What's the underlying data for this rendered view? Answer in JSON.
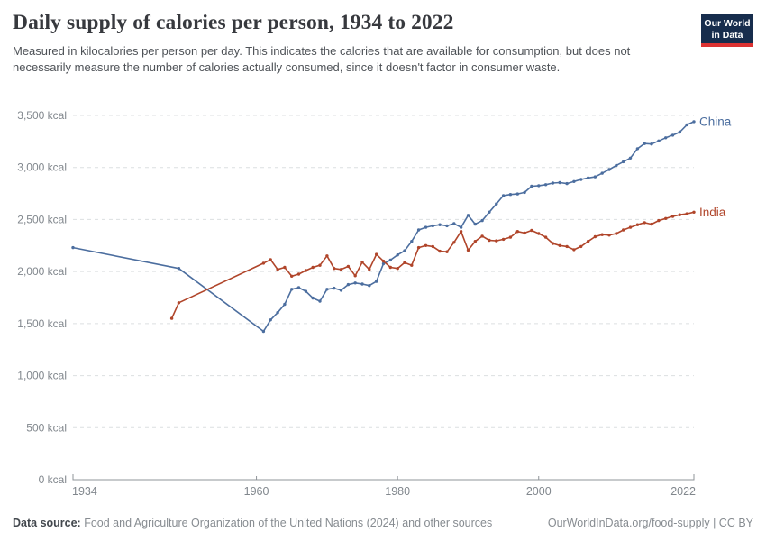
{
  "header": {
    "subtitle": "Measured in kilocalories per person per day. This indicates the calories that are available for consumption, but does not necessarily measure the number of calories actually consumed, since it doesn't factor in consumer waste.",
    "logo": {
      "line1": "Our World",
      "line2": "in Data"
    }
  },
  "footer": {
    "datasource_label": "Data source:",
    "datasource_text": " Food and Agriculture Organization of the United Nations (2024) and other sources",
    "link_text": "OurWorldInData.org/food-supply | CC BY"
  },
  "colors": {
    "china": "#4c6e9f",
    "india": "#b0452a",
    "grid": "#dcdfe1",
    "axis": "#8f9499",
    "tick_text": "#81878d",
    "logo_bg": "#172d4d",
    "logo_bar": "#dc3232"
  },
  "chart_data": {
    "type": "line",
    "title": "Daily supply of calories per person, 1934 to 2022",
    "xlabel": "",
    "ylabel": "kilocalories per person per day",
    "xlim": [
      1934,
      2022
    ],
    "ylim": [
      0,
      3500
    ],
    "x_ticks": [
      1934,
      1960,
      1980,
      2000,
      2022
    ],
    "y_ticks": [
      0,
      500,
      1000,
      1500,
      2000,
      2500,
      3000,
      3500
    ],
    "y_tick_suffix": " kcal",
    "grid": "horizontal-dashed",
    "legend_position": "line-end-labels",
    "series": [
      {
        "name": "China",
        "color": "#4c6e9f",
        "points": [
          [
            1934,
            2230
          ],
          [
            1949,
            2030
          ],
          [
            1961,
            1425
          ],
          [
            1962,
            1535
          ],
          [
            1963,
            1605
          ],
          [
            1964,
            1685
          ],
          [
            1965,
            1830
          ],
          [
            1966,
            1845
          ],
          [
            1967,
            1810
          ],
          [
            1968,
            1745
          ],
          [
            1969,
            1715
          ],
          [
            1970,
            1830
          ],
          [
            1971,
            1840
          ],
          [
            1972,
            1820
          ],
          [
            1973,
            1875
          ],
          [
            1974,
            1890
          ],
          [
            1975,
            1880
          ],
          [
            1976,
            1865
          ],
          [
            1977,
            1905
          ],
          [
            1978,
            2075
          ],
          [
            1979,
            2110
          ],
          [
            1980,
            2160
          ],
          [
            1981,
            2200
          ],
          [
            1982,
            2290
          ],
          [
            1983,
            2400
          ],
          [
            1984,
            2425
          ],
          [
            1985,
            2440
          ],
          [
            1986,
            2450
          ],
          [
            1987,
            2440
          ],
          [
            1988,
            2460
          ],
          [
            1989,
            2425
          ],
          [
            1990,
            2540
          ],
          [
            1991,
            2455
          ],
          [
            1992,
            2490
          ],
          [
            1993,
            2570
          ],
          [
            1994,
            2650
          ],
          [
            1995,
            2730
          ],
          [
            1996,
            2740
          ],
          [
            1997,
            2745
          ],
          [
            1998,
            2760
          ],
          [
            1999,
            2820
          ],
          [
            2000,
            2825
          ],
          [
            2001,
            2835
          ],
          [
            2002,
            2850
          ],
          [
            2003,
            2855
          ],
          [
            2004,
            2845
          ],
          [
            2005,
            2865
          ],
          [
            2006,
            2885
          ],
          [
            2007,
            2900
          ],
          [
            2008,
            2910
          ],
          [
            2009,
            2945
          ],
          [
            2010,
            2980
          ],
          [
            2011,
            3020
          ],
          [
            2012,
            3055
          ],
          [
            2013,
            3090
          ],
          [
            2014,
            3180
          ],
          [
            2015,
            3230
          ],
          [
            2016,
            3225
          ],
          [
            2017,
            3255
          ],
          [
            2018,
            3285
          ],
          [
            2019,
            3310
          ],
          [
            2020,
            3340
          ],
          [
            2021,
            3410
          ],
          [
            2022,
            3440
          ]
        ]
      },
      {
        "name": "India",
        "color": "#b0452a",
        "points": [
          [
            1948,
            1550
          ],
          [
            1949,
            1700
          ],
          [
            1961,
            2080
          ],
          [
            1962,
            2115
          ],
          [
            1963,
            2020
          ],
          [
            1964,
            2040
          ],
          [
            1965,
            1955
          ],
          [
            1966,
            1975
          ],
          [
            1967,
            2010
          ],
          [
            1968,
            2040
          ],
          [
            1969,
            2060
          ],
          [
            1970,
            2150
          ],
          [
            1971,
            2030
          ],
          [
            1972,
            2020
          ],
          [
            1973,
            2050
          ],
          [
            1974,
            1960
          ],
          [
            1975,
            2090
          ],
          [
            1976,
            2020
          ],
          [
            1977,
            2165
          ],
          [
            1978,
            2100
          ],
          [
            1979,
            2040
          ],
          [
            1980,
            2030
          ],
          [
            1981,
            2085
          ],
          [
            1982,
            2060
          ],
          [
            1983,
            2230
          ],
          [
            1984,
            2250
          ],
          [
            1985,
            2240
          ],
          [
            1986,
            2195
          ],
          [
            1987,
            2190
          ],
          [
            1988,
            2280
          ],
          [
            1989,
            2385
          ],
          [
            1990,
            2205
          ],
          [
            1991,
            2290
          ],
          [
            1992,
            2340
          ],
          [
            1993,
            2300
          ],
          [
            1994,
            2295
          ],
          [
            1995,
            2310
          ],
          [
            1996,
            2330
          ],
          [
            1997,
            2385
          ],
          [
            1998,
            2370
          ],
          [
            1999,
            2395
          ],
          [
            2000,
            2365
          ],
          [
            2001,
            2330
          ],
          [
            2002,
            2270
          ],
          [
            2003,
            2250
          ],
          [
            2004,
            2240
          ],
          [
            2005,
            2210
          ],
          [
            2006,
            2240
          ],
          [
            2007,
            2290
          ],
          [
            2008,
            2335
          ],
          [
            2009,
            2355
          ],
          [
            2010,
            2350
          ],
          [
            2011,
            2365
          ],
          [
            2012,
            2400
          ],
          [
            2013,
            2425
          ],
          [
            2014,
            2450
          ],
          [
            2015,
            2470
          ],
          [
            2016,
            2455
          ],
          [
            2017,
            2490
          ],
          [
            2018,
            2510
          ],
          [
            2019,
            2530
          ],
          [
            2020,
            2545
          ],
          [
            2021,
            2555
          ],
          [
            2022,
            2570
          ]
        ]
      }
    ]
  }
}
